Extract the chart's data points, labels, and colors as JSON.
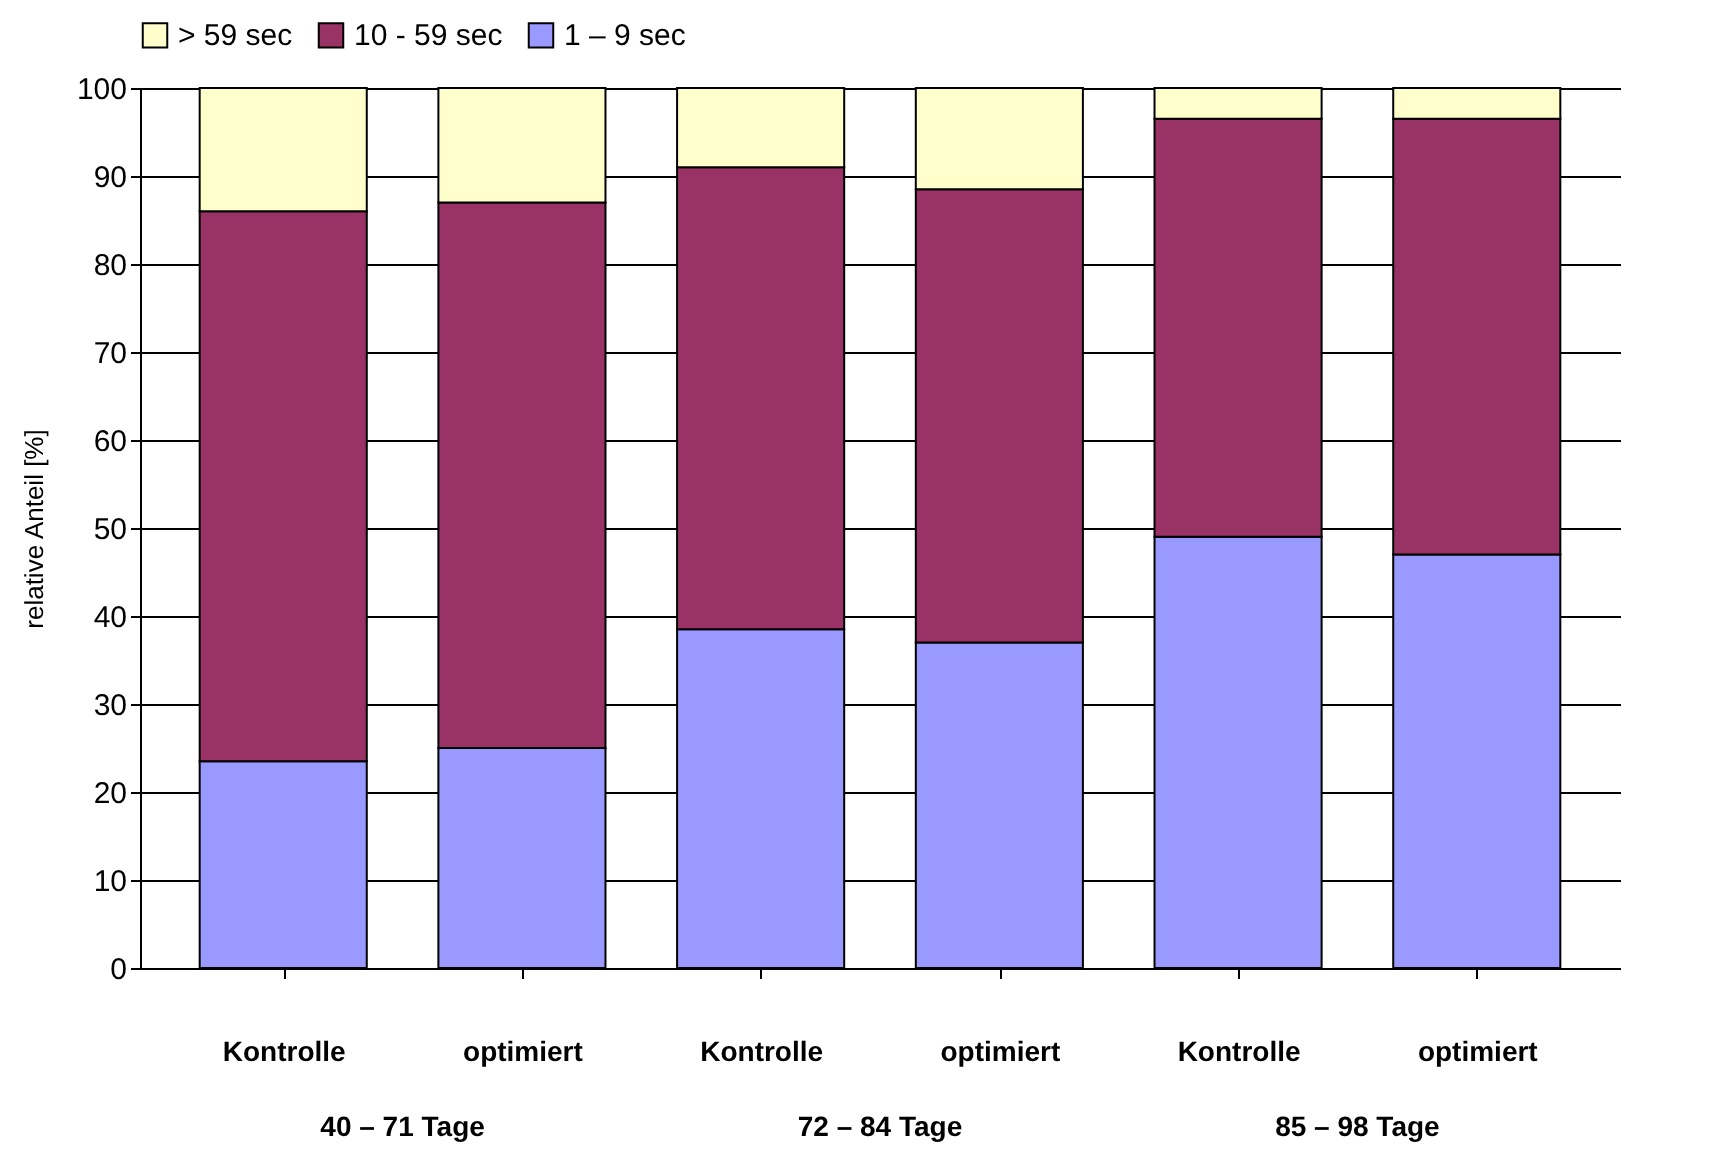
{
  "chart_data": {
    "type": "bar",
    "stacked": true,
    "categories": [
      "Kontrolle",
      "optimiert",
      "Kontrolle",
      "optimiert",
      "Kontrolle",
      "optimiert"
    ],
    "series": [
      {
        "name": "1 – 9 sec",
        "color": "#9999ff",
        "values": [
          23.5,
          25,
          38.5,
          37,
          49,
          47
        ]
      },
      {
        "name": "10 - 59 sec",
        "color": "#993366",
        "values": [
          62.5,
          62,
          52.5,
          51.5,
          47.5,
          49.5
        ]
      },
      {
        "name": "> 59 sec",
        "color": "#ffffcc",
        "values": [
          14,
          13,
          9,
          11.5,
          3.5,
          3.5
        ]
      }
    ],
    "ylabel": "relative Anteil [%]",
    "ylim": [
      0,
      100
    ],
    "yticks": [
      0,
      10,
      20,
      30,
      40,
      50,
      60,
      70,
      80,
      90,
      100
    ],
    "grid": "y",
    "legend": "top",
    "annotations": [
      "40 – 71 Tage",
      "72 – 84 Tage",
      "85 – 98 Tage"
    ]
  }
}
